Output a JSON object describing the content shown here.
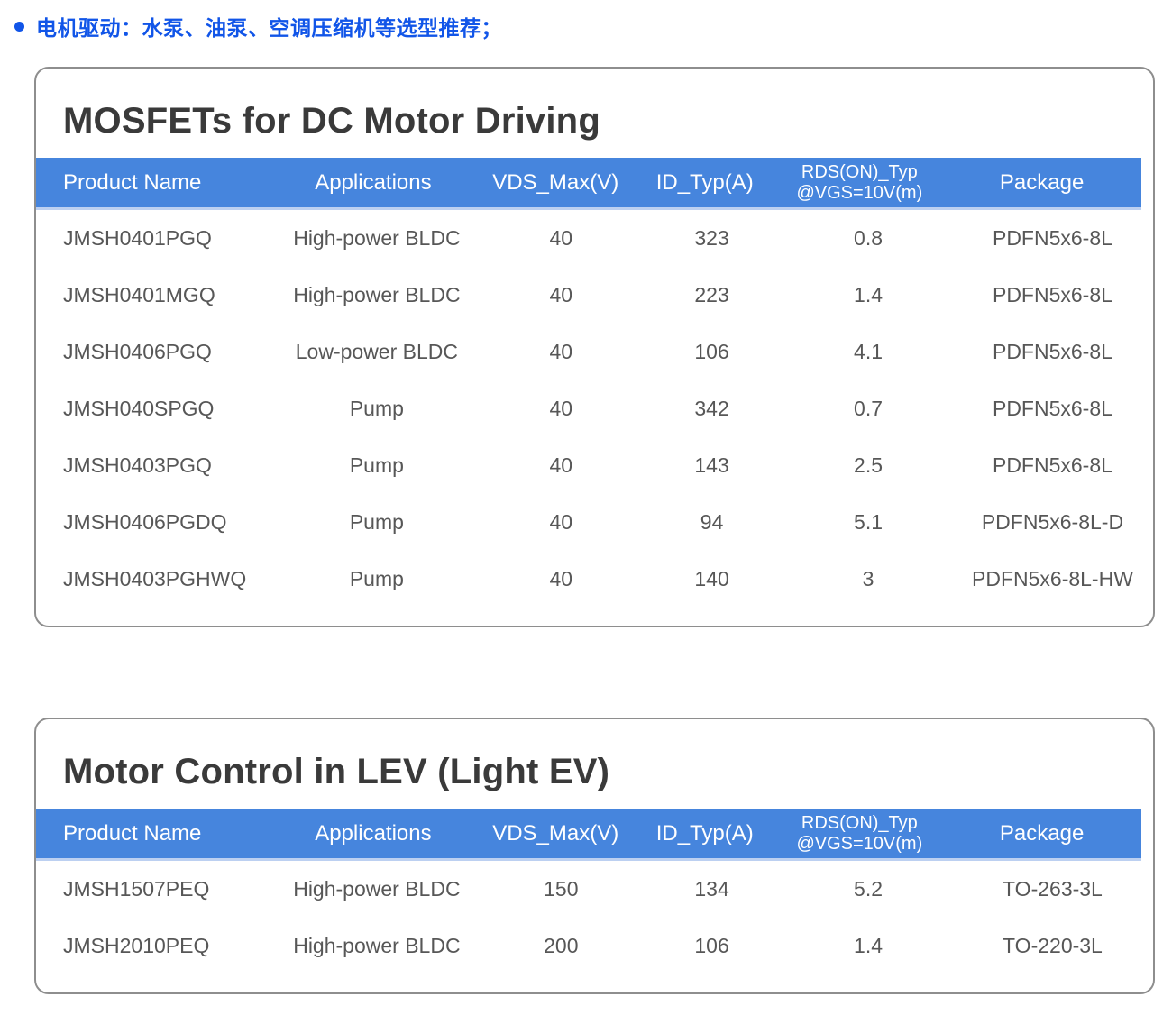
{
  "page": {
    "bullet_header": "电机驱动：水泵、油泵、空调压缩机等选型推荐；",
    "accent_color": "#1155e8",
    "header_band_color": "#4685dd"
  },
  "columns": {
    "product": "Product Name",
    "applications": "Applications",
    "vds": "VDS_Max(V)",
    "id": "ID_Typ(A)",
    "rds_line1": "RDS(ON)_Typ",
    "rds_line2": "@VGS=10V(m)",
    "package": "Package"
  },
  "tables": [
    {
      "title": "MOSFETs for DC Motor Driving",
      "rows": [
        {
          "product": "JMSH0401PGQ",
          "applications": "High-power BLDC",
          "vds": "40",
          "id": "323",
          "rds": "0.8",
          "package": "PDFN5x6-8L"
        },
        {
          "product": "JMSH0401MGQ",
          "applications": "High-power BLDC",
          "vds": "40",
          "id": "223",
          "rds": "1.4",
          "package": "PDFN5x6-8L"
        },
        {
          "product": "JMSH0406PGQ",
          "applications": "Low-power BLDC",
          "vds": "40",
          "id": "106",
          "rds": "4.1",
          "package": "PDFN5x6-8L"
        },
        {
          "product": "JMSH040SPGQ",
          "applications": "Pump",
          "vds": "40",
          "id": "342",
          "rds": "0.7",
          "package": "PDFN5x6-8L"
        },
        {
          "product": "JMSH0403PGQ",
          "applications": "Pump",
          "vds": "40",
          "id": "143",
          "rds": "2.5",
          "package": "PDFN5x6-8L"
        },
        {
          "product": "JMSH0406PGDQ",
          "applications": "Pump",
          "vds": "40",
          "id": "94",
          "rds": "5.1",
          "package": "PDFN5x6-8L-D"
        },
        {
          "product": "JMSH0403PGHWQ",
          "applications": "Pump",
          "vds": "40",
          "id": "140",
          "rds": "3",
          "package": "PDFN5x6-8L-HW"
        }
      ]
    },
    {
      "title": "Motor Control in LEV (Light EV)",
      "rows": [
        {
          "product": "JMSH1507PEQ",
          "applications": "High-power BLDC",
          "vds": "150",
          "id": "134",
          "rds": "5.2",
          "package": "TO-263-3L"
        },
        {
          "product": "JMSH2010PEQ",
          "applications": "High-power BLDC",
          "vds": "200",
          "id": "106",
          "rds": "1.4",
          "package": "TO-220-3L"
        }
      ]
    }
  ]
}
